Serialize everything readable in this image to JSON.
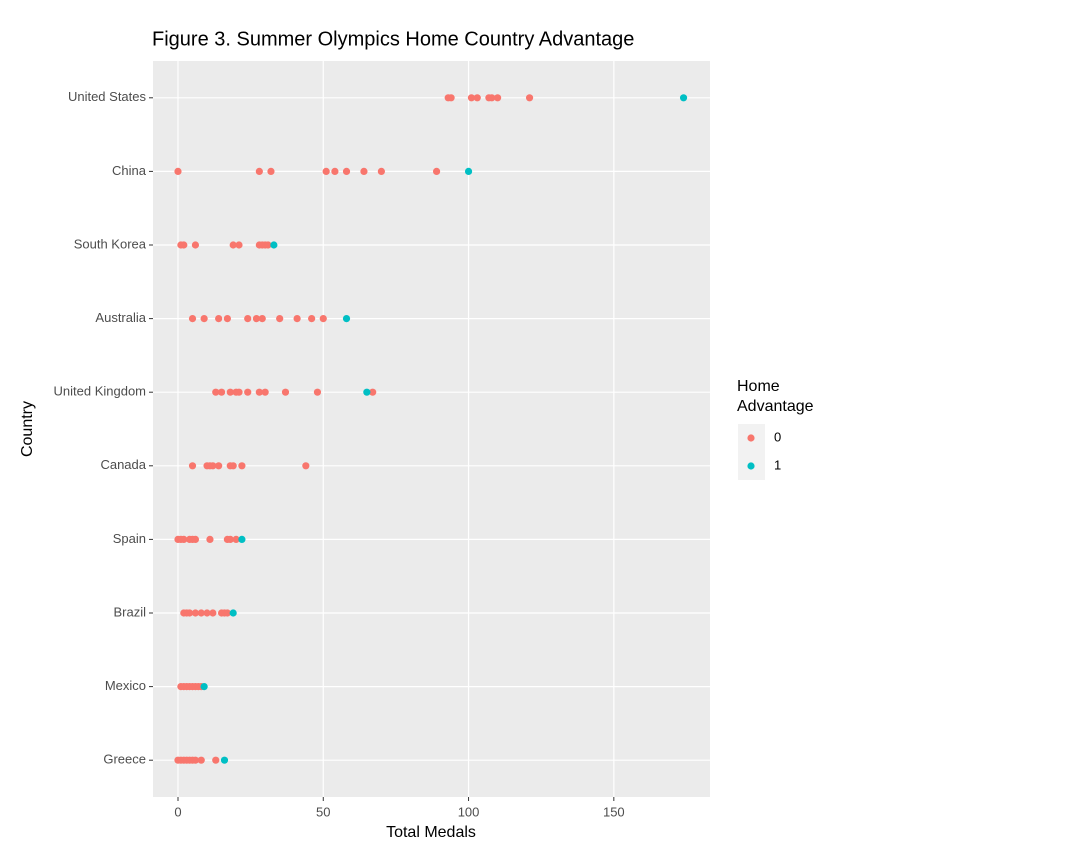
{
  "chart_data": {
    "type": "scatter",
    "title": "Figure 3. Summer Olympics Home Country Advantage",
    "xlabel": "Total Medals",
    "ylabel": "Country",
    "categories": [
      "United States",
      "China",
      "South Korea",
      "Australia",
      "United Kingdom",
      "Canada",
      "Spain",
      "Brazil",
      "Mexico",
      "Greece"
    ],
    "xlim": [
      -8.6,
      183.1
    ],
    "xticks": [
      0,
      50,
      100,
      150
    ],
    "grid": true,
    "legend_title": "Home Advantage",
    "legend_position": "right",
    "series": [
      {
        "name": "0",
        "color": "#F8766D",
        "y": [
          "United States",
          "United States",
          "United States",
          "United States",
          "United States",
          "United States",
          "United States",
          "United States",
          "China",
          "China",
          "China",
          "China",
          "China",
          "China",
          "China",
          "China",
          "China",
          "South Korea",
          "South Korea",
          "South Korea",
          "South Korea",
          "South Korea",
          "South Korea",
          "South Korea",
          "South Korea",
          "South Korea",
          "Australia",
          "Australia",
          "Australia",
          "Australia",
          "Australia",
          "Australia",
          "Australia",
          "Australia",
          "Australia",
          "Australia",
          "Australia",
          "United Kingdom",
          "United Kingdom",
          "United Kingdom",
          "United Kingdom",
          "United Kingdom",
          "United Kingdom",
          "United Kingdom",
          "United Kingdom",
          "United Kingdom",
          "United Kingdom",
          "United Kingdom",
          "Canada",
          "Canada",
          "Canada",
          "Canada",
          "Canada",
          "Canada",
          "Canada",
          "Canada",
          "Canada",
          "Spain",
          "Spain",
          "Spain",
          "Spain",
          "Spain",
          "Spain",
          "Spain",
          "Spain",
          "Spain",
          "Spain",
          "Brazil",
          "Brazil",
          "Brazil",
          "Brazil",
          "Brazil",
          "Brazil",
          "Brazil",
          "Brazil",
          "Brazil",
          "Brazil",
          "Mexico",
          "Mexico",
          "Mexico",
          "Mexico",
          "Mexico",
          "Mexico",
          "Mexico",
          "Mexico",
          "Greece",
          "Greece",
          "Greece",
          "Greece",
          "Greece",
          "Greece",
          "Greece",
          "Greece",
          "Greece"
        ],
        "values": [
          93,
          94,
          101,
          103,
          107,
          108,
          110,
          121,
          0,
          28,
          32,
          51,
          54,
          58,
          64,
          70,
          89,
          1,
          2,
          6,
          19,
          21,
          28,
          29,
          30,
          31,
          5,
          9,
          14,
          17,
          24,
          27,
          29,
          35,
          41,
          46,
          50,
          13,
          15,
          18,
          20,
          21,
          24,
          28,
          30,
          37,
          48,
          67,
          5,
          10,
          11,
          12,
          14,
          18,
          19,
          22,
          44,
          0,
          1,
          2,
          4,
          5,
          6,
          11,
          17,
          18,
          20,
          2,
          3,
          4,
          6,
          8,
          10,
          12,
          15,
          16,
          17,
          1,
          2,
          3,
          4,
          5,
          6,
          7,
          8,
          0,
          1,
          2,
          3,
          4,
          5,
          6,
          8,
          13
        ]
      },
      {
        "name": "1",
        "color": "#00BFC4",
        "y": [
          "United States",
          "China",
          "South Korea",
          "Australia",
          "United Kingdom",
          "Spain",
          "Brazil",
          "Mexico",
          "Greece"
        ],
        "values": [
          174,
          100,
          33,
          58,
          65,
          22,
          19,
          9,
          16
        ]
      }
    ]
  }
}
